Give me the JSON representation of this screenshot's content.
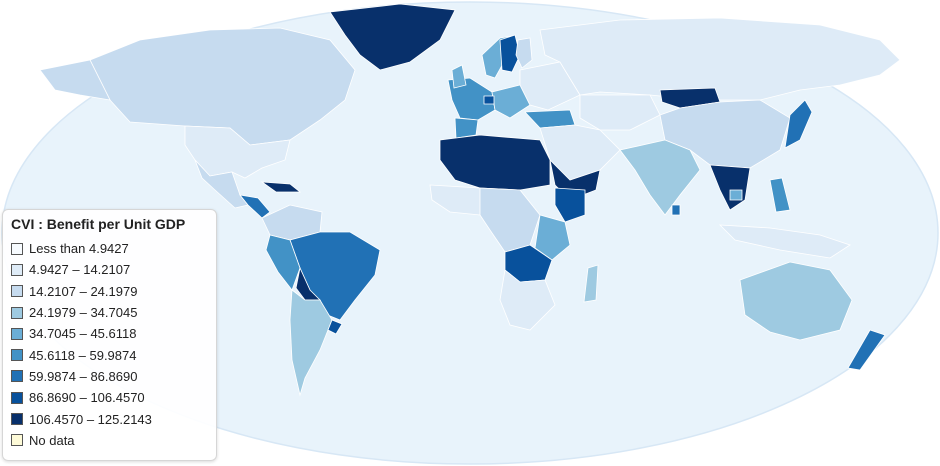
{
  "map": {
    "title": "CVI : Benefit per Unit GDP",
    "colors": {
      "ocean": "#e8f3fb",
      "ocean_edge": "#d7e7f5",
      "no_data": "#fefbd8"
    },
    "legend": [
      {
        "label": "Less than 4.9427",
        "color": "#f7fbff"
      },
      {
        "label": "4.9427 – 14.2107",
        "color": "#deebf7"
      },
      {
        "label": "14.2107 – 24.1979",
        "color": "#c6dbef"
      },
      {
        "label": "24.1979 – 34.7045",
        "color": "#9ecae1"
      },
      {
        "label": "34.7045 – 45.6118",
        "color": "#6baed6"
      },
      {
        "label": "45.6118 – 59.9874",
        "color": "#4292c6"
      },
      {
        "label": "59.9874 – 86.8690",
        "color": "#2171b5"
      },
      {
        "label": "86.8690 – 106.4570",
        "color": "#08519c"
      },
      {
        "label": "106.4570 – 125.2143",
        "color": "#08306b"
      },
      {
        "label": "No data",
        "color": "#fefbd8"
      }
    ]
  }
}
